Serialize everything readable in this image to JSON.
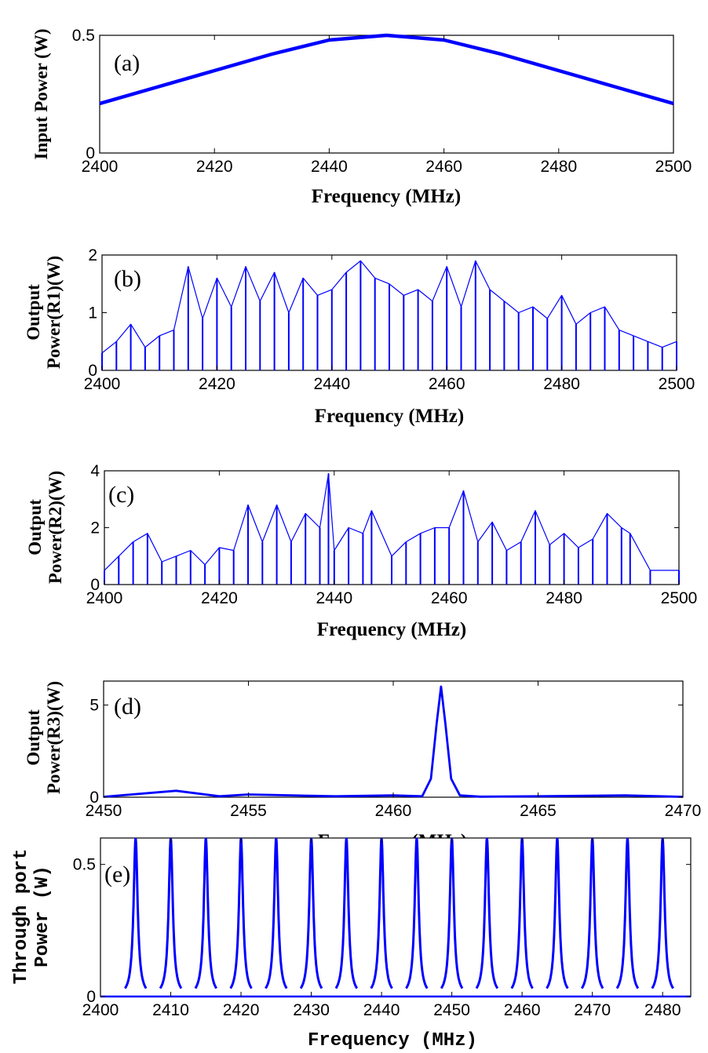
{
  "chart_data": [
    {
      "type": "line",
      "panel_label": "(a)",
      "ylabel": [
        "Input Power (W)"
      ],
      "xlabel": "Frequency (MHz)",
      "xlim": [
        2400,
        2500
      ],
      "ylim": [
        0,
        0.5
      ],
      "xticks": [
        2400,
        2420,
        2440,
        2460,
        2480,
        2500
      ],
      "yticks": [
        0,
        0.5
      ],
      "series": [
        {
          "color": "#0000ff",
          "x": [
            2400,
            2410,
            2420,
            2430,
            2440,
            2450,
            2460,
            2470,
            2480,
            2490,
            2500
          ],
          "y": [
            0.21,
            0.28,
            0.35,
            0.42,
            0.48,
            0.5,
            0.48,
            0.42,
            0.35,
            0.28,
            0.21
          ]
        }
      ]
    },
    {
      "type": "line",
      "panel_label": "(b)",
      "ylabel": [
        "Output",
        "Power(R1)(W)"
      ],
      "xlabel": "Frequency (MHz)",
      "xlim": [
        2400,
        2500
      ],
      "ylim": [
        0,
        2
      ],
      "xticks": [
        2400,
        2420,
        2440,
        2460,
        2480,
        2500
      ],
      "yticks": [
        0,
        1,
        2
      ],
      "series": [
        {
          "color": "#0000ff",
          "x": [
            2400,
            2402.5,
            2405,
            2407.5,
            2410,
            2412.5,
            2415,
            2417.5,
            2420,
            2422.5,
            2425,
            2427.5,
            2430,
            2432.5,
            2435,
            2437.5,
            2440,
            2442.5,
            2445,
            2447.5,
            2450,
            2452.5,
            2455,
            2457.5,
            2460,
            2462.5,
            2465,
            2467.5,
            2470,
            2472.5,
            2475,
            2477.5,
            2480,
            2482.5,
            2485,
            2487.5,
            2490,
            2492.5,
            2495,
            2497.5,
            2500
          ],
          "y": [
            0.3,
            0.5,
            0.8,
            0.4,
            0.6,
            0.7,
            1.8,
            0.9,
            1.6,
            1.1,
            1.8,
            1.2,
            1.7,
            1.0,
            1.6,
            1.3,
            1.4,
            1.7,
            1.9,
            1.6,
            1.5,
            1.3,
            1.4,
            1.2,
            1.8,
            1.1,
            1.9,
            1.4,
            1.2,
            1.0,
            1.1,
            0.9,
            1.3,
            0.8,
            1.0,
            1.1,
            0.7,
            0.6,
            0.5,
            0.4,
            0.5
          ]
        }
      ]
    },
    {
      "type": "line",
      "panel_label": "(c)",
      "ylabel": [
        "Output",
        "Power(R2)(W)"
      ],
      "xlabel": "Frequency (MHz)",
      "xlim": [
        2400,
        2500
      ],
      "ylim": [
        0,
        4
      ],
      "xticks": [
        2400,
        2420,
        2440,
        2460,
        2480,
        2500
      ],
      "yticks": [
        0,
        2,
        4
      ],
      "series": [
        {
          "color": "#0000ff",
          "x": [
            2400,
            2402.5,
            2405,
            2407.5,
            2410,
            2412.5,
            2415,
            2417.5,
            2420,
            2422.5,
            2425,
            2427.5,
            2430,
            2432.5,
            2435,
            2437.5,
            2439,
            2440,
            2442.5,
            2445,
            2446.5,
            2450,
            2452.5,
            2455,
            2457.5,
            2460,
            2462.5,
            2465,
            2467.5,
            2470,
            2472.5,
            2475,
            2477.5,
            2480,
            2482.5,
            2485,
            2487.5,
            2490,
            2491.5,
            2495,
            2500
          ],
          "y": [
            0.5,
            1.0,
            1.5,
            1.8,
            0.8,
            1.0,
            1.2,
            0.7,
            1.3,
            1.2,
            2.8,
            1.5,
            2.8,
            1.5,
            2.5,
            2.0,
            3.9,
            1.2,
            2.0,
            1.8,
            2.6,
            1.0,
            1.5,
            1.8,
            2.0,
            2.0,
            3.3,
            1.5,
            2.2,
            1.2,
            1.5,
            2.6,
            1.4,
            1.8,
            1.3,
            1.6,
            2.5,
            2.0,
            1.8,
            0.5,
            0.5
          ]
        }
      ]
    },
    {
      "type": "line",
      "panel_label": "(d)",
      "ylabel": [
        "Output",
        "Power(R3)(W)"
      ],
      "xlabel": "Frequency (MHz)",
      "xlim": [
        2450,
        2470
      ],
      "ylim": [
        0,
        6.3
      ],
      "xticks": [
        2450,
        2455,
        2460,
        2465,
        2470
      ],
      "yticks": [
        0,
        5
      ],
      "series": [
        {
          "color": "#0000ff",
          "x": [
            2450,
            2452.5,
            2454,
            2455,
            2458,
            2460,
            2461,
            2461.3,
            2461.5,
            2461.65,
            2461.8,
            2462,
            2462.3,
            2463,
            2465,
            2468,
            2470
          ],
          "y": [
            0.02,
            0.35,
            0.05,
            0.15,
            0.05,
            0.1,
            0.05,
            1.0,
            4.0,
            6.0,
            4.0,
            1.0,
            0.1,
            0.03,
            0.05,
            0.1,
            0.02
          ]
        }
      ]
    },
    {
      "type": "line",
      "panel_label": "(e)",
      "ylabel": [
        "Through port",
        "Power (W)"
      ],
      "xlabel": "Frequency (MHz)",
      "xlim": [
        2400,
        2484
      ],
      "ylim": [
        0,
        0.6
      ],
      "xticks": [
        2400,
        2410,
        2420,
        2430,
        2440,
        2450,
        2460,
        2470,
        2480
      ],
      "yticks": [
        0,
        0.5
      ],
      "peaks": {
        "centers": [
          2405,
          2410,
          2415,
          2420,
          2425,
          2430,
          2435,
          2440,
          2445,
          2450,
          2455,
          2460,
          2465,
          2470,
          2475,
          2480
        ],
        "height": 0.6,
        "color": "#0000ff"
      }
    }
  ]
}
